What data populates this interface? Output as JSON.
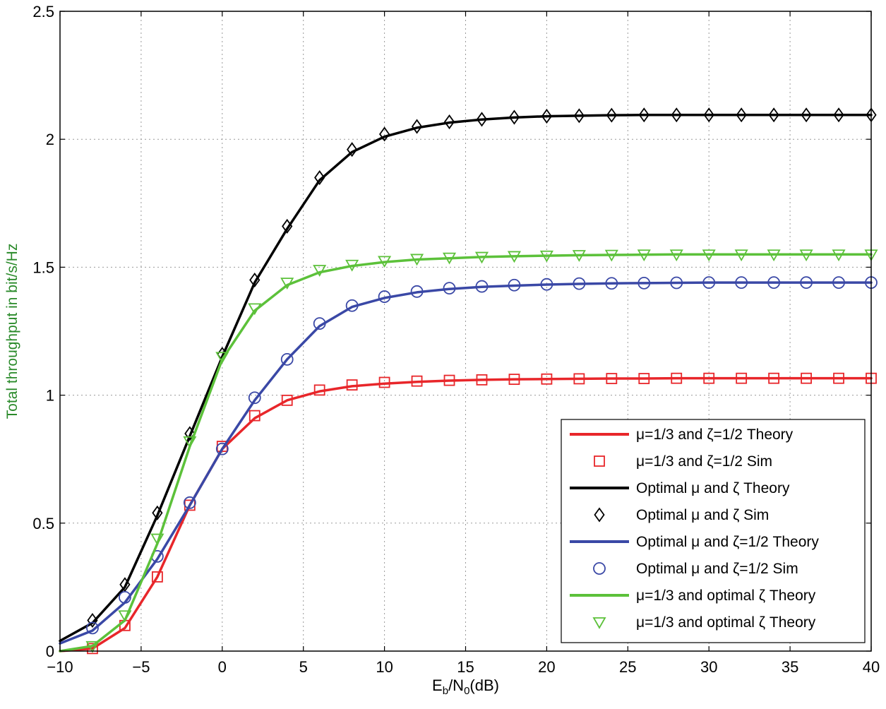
{
  "chart_data": {
    "type": "line",
    "title": "",
    "xlabel": {
      "main": "E",
      "sub1": "b",
      "mid": "/N",
      "sub2": "0",
      "tail": "(dB)"
    },
    "ylabel": "Total throughput in bit/s/Hz",
    "xlim": [
      -10,
      40
    ],
    "ylim": [
      0,
      2.5
    ],
    "xticks": [
      -10,
      -5,
      0,
      5,
      10,
      15,
      20,
      25,
      30,
      35,
      40
    ],
    "yticks": [
      0,
      0.5,
      1,
      1.5,
      2,
      2.5
    ],
    "xtick_labels": [
      "−10",
      "−5",
      "0",
      "5",
      "10",
      "15",
      "20",
      "25",
      "30",
      "35",
      "40"
    ],
    "ytick_labels": [
      "0",
      "0.5",
      "1",
      "1.5",
      "2",
      "2.5"
    ],
    "grid": true,
    "legend_position": "bottom-right",
    "x_theory": [
      -10,
      -8,
      -6,
      -4,
      -2,
      0,
      2,
      4,
      6,
      8,
      10,
      12,
      14,
      16,
      18,
      20,
      22,
      24,
      26,
      28,
      30,
      32,
      34,
      36,
      38,
      40
    ],
    "x_sim": [
      -8,
      -6,
      -4,
      -2,
      0,
      2,
      4,
      6,
      8,
      10,
      12,
      14,
      16,
      18,
      20,
      22,
      24,
      26,
      28,
      30,
      32,
      34,
      36,
      38,
      40
    ],
    "series": [
      {
        "name": "μ=1/3 and ζ=1/2 Theory",
        "kind": "line",
        "color": "#e8262a",
        "values": [
          0.0,
          0.01,
          0.09,
          0.29,
          0.57,
          0.79,
          0.91,
          0.98,
          1.015,
          1.035,
          1.045,
          1.052,
          1.057,
          1.06,
          1.062,
          1.063,
          1.064,
          1.065,
          1.065,
          1.066,
          1.066,
          1.066,
          1.066,
          1.066,
          1.066,
          1.066
        ]
      },
      {
        "name": "μ=1/3 and ζ=1/2 Sim",
        "kind": "marker",
        "marker": "square",
        "color": "#e8262a",
        "values": [
          0.01,
          0.1,
          0.29,
          0.57,
          0.8,
          0.92,
          0.98,
          1.02,
          1.04,
          1.05,
          1.055,
          1.058,
          1.06,
          1.062,
          1.063,
          1.064,
          1.065,
          1.065,
          1.066,
          1.066,
          1.066,
          1.066,
          1.066,
          1.066,
          1.066
        ]
      },
      {
        "name": "Optimal μ and ζ Theory",
        "kind": "line",
        "color": "#000000",
        "values": [
          0.04,
          0.11,
          0.25,
          0.53,
          0.84,
          1.15,
          1.44,
          1.65,
          1.84,
          1.95,
          2.01,
          2.045,
          2.065,
          2.077,
          2.085,
          2.09,
          2.092,
          2.094,
          2.095,
          2.095,
          2.095,
          2.095,
          2.095,
          2.095,
          2.095,
          2.095
        ]
      },
      {
        "name": "Optimal μ and ζ Sim",
        "kind": "marker",
        "marker": "diamond",
        "color": "#000000",
        "values": [
          0.12,
          0.26,
          0.54,
          0.85,
          1.16,
          1.45,
          1.66,
          1.85,
          1.96,
          2.02,
          2.05,
          2.068,
          2.078,
          2.086,
          2.09,
          2.092,
          2.094,
          2.095,
          2.095,
          2.095,
          2.095,
          2.095,
          2.095,
          2.095,
          2.095
        ]
      },
      {
        "name": "Optimal μ and ζ=1/2 Theory",
        "kind": "line",
        "color": "#3a48a6",
        "values": [
          0.03,
          0.08,
          0.19,
          0.36,
          0.57,
          0.79,
          0.98,
          1.14,
          1.27,
          1.345,
          1.38,
          1.402,
          1.415,
          1.423,
          1.428,
          1.432,
          1.435,
          1.437,
          1.438,
          1.439,
          1.44,
          1.44,
          1.44,
          1.44,
          1.44,
          1.44
        ]
      },
      {
        "name": "Optimal μ and ζ=1/2 Sim",
        "kind": "marker",
        "marker": "circle",
        "color": "#3a48a6",
        "values": [
          0.09,
          0.21,
          0.37,
          0.58,
          0.79,
          0.99,
          1.14,
          1.28,
          1.35,
          1.385,
          1.405,
          1.418,
          1.425,
          1.43,
          1.433,
          1.436,
          1.437,
          1.438,
          1.439,
          1.44,
          1.44,
          1.44,
          1.44,
          1.44,
          1.44
        ]
      },
      {
        "name": "μ=1/3 and optimal ζ Theory",
        "kind": "line",
        "color": "#5cc13a",
        "values": [
          0.0,
          0.02,
          0.12,
          0.42,
          0.8,
          1.14,
          1.33,
          1.43,
          1.48,
          1.505,
          1.52,
          1.53,
          1.535,
          1.54,
          1.543,
          1.545,
          1.547,
          1.548,
          1.549,
          1.55,
          1.55,
          1.55,
          1.55,
          1.55,
          1.55,
          1.55
        ]
      },
      {
        "name": "μ=1/3 and optimal ζ Theory",
        "kind": "marker",
        "marker": "triangle-down",
        "color": "#5cc13a",
        "values": [
          0.02,
          0.14,
          0.44,
          0.82,
          1.15,
          1.34,
          1.44,
          1.49,
          1.51,
          1.525,
          1.533,
          1.538,
          1.541,
          1.544,
          1.546,
          1.548,
          1.549,
          1.55,
          1.55,
          1.55,
          1.55,
          1.55,
          1.55,
          1.55,
          1.55
        ]
      }
    ]
  }
}
